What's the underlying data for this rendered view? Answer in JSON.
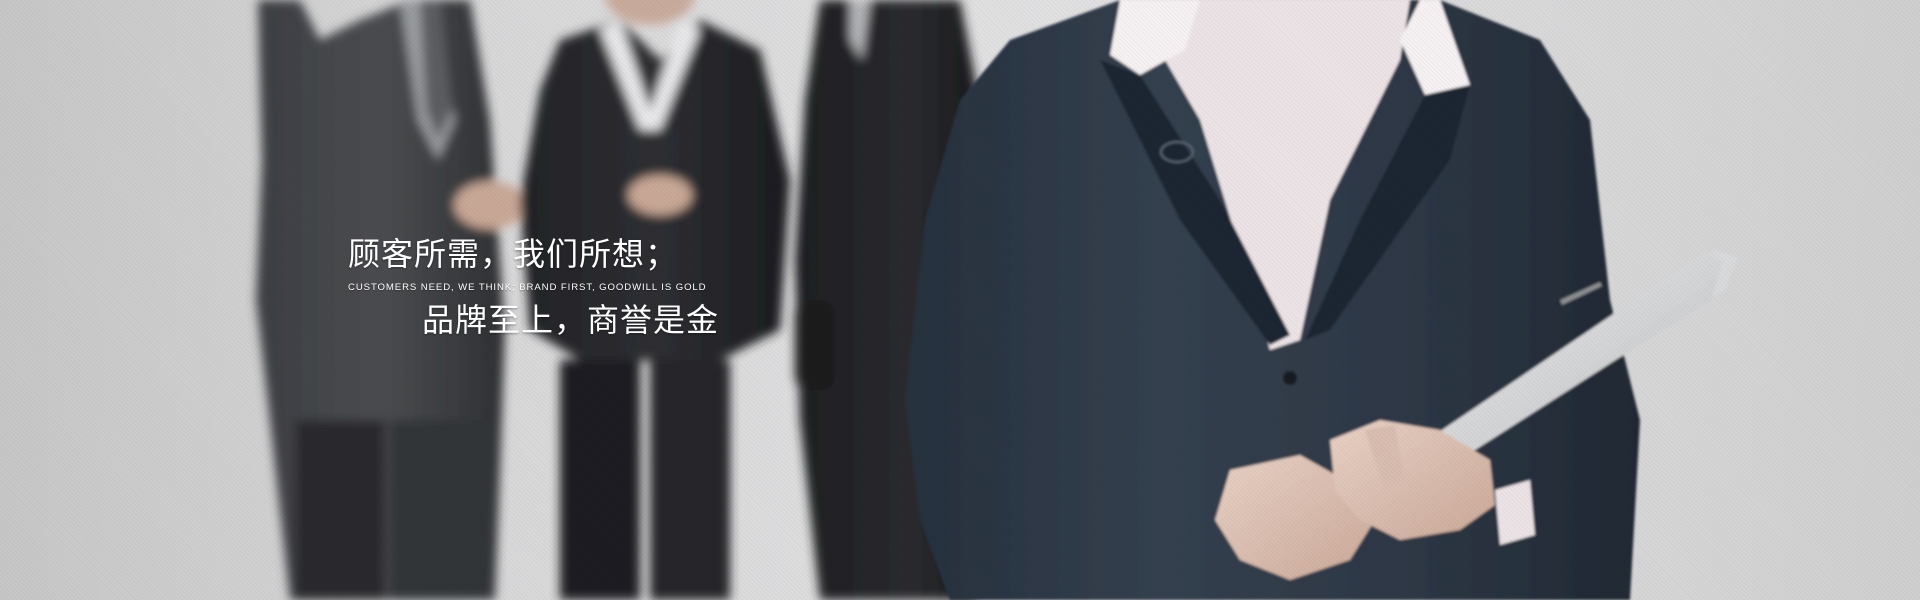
{
  "banner": {
    "headline_1": "顾客所需，我们所想；",
    "subline": "CUSTOMERS NEED, WE THINK; BRAND FIRST, GOODWILL IS GOLD",
    "headline_2": "品牌至上，商誉是金",
    "colors": {
      "background": "#dcdcdd",
      "suit_dark": "#2c3645",
      "text": "#ffffff"
    }
  }
}
